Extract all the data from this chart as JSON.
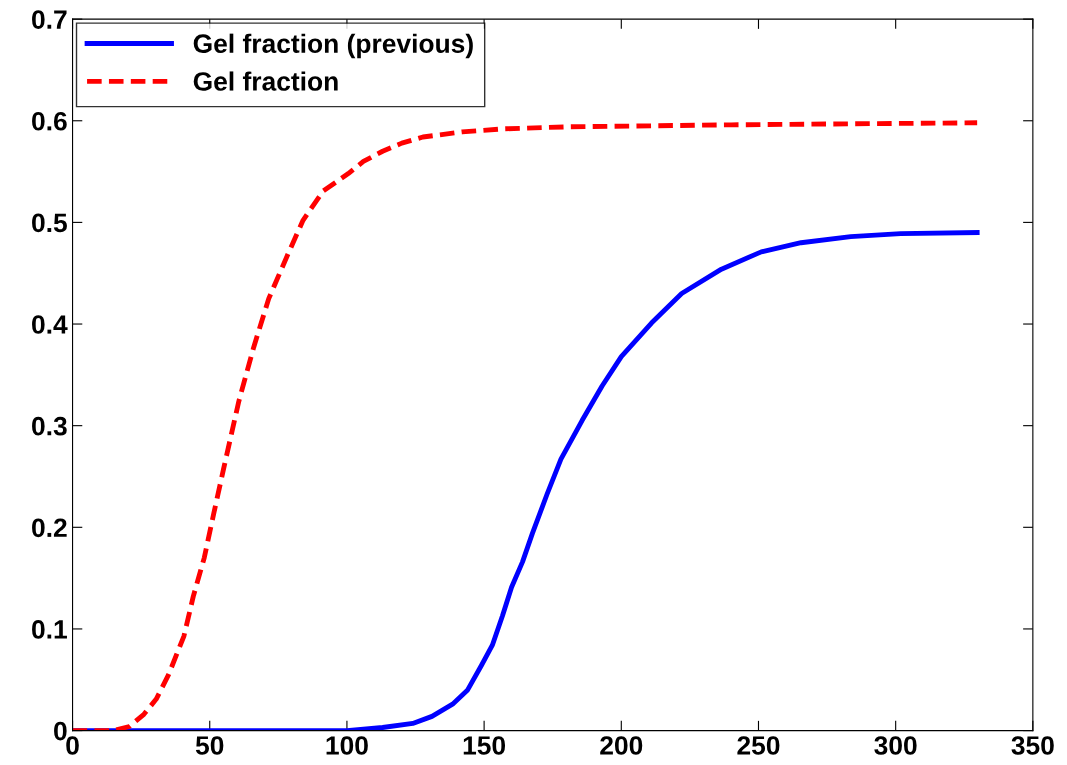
{
  "chart_data": {
    "type": "line",
    "xlim": [
      0,
      350
    ],
    "ylim": [
      0,
      0.7
    ],
    "xticks": [
      0,
      50,
      100,
      150,
      200,
      250,
      300,
      350
    ],
    "yticks": [
      0,
      0.1,
      0.2,
      0.3,
      0.4,
      0.5,
      0.6,
      0.7
    ],
    "grid": false,
    "legend": "top left",
    "marker": "none",
    "series": [
      {
        "name": "Gel fraction (previous)",
        "color": "#0000ff",
        "line_style": "solid",
        "x": [
          0,
          50,
          100,
          113,
          124,
          131,
          138.5,
          144,
          149,
          153,
          156.7,
          160,
          164,
          167.6,
          173,
          178,
          185.7,
          193,
          200,
          211,
          222,
          236.5,
          251,
          265.5,
          283.6,
          301.8,
          329.7
        ],
        "values": [
          0,
          0,
          0,
          0.003,
          0.007,
          0.014,
          0.026,
          0.04,
          0.064,
          0.084,
          0.113,
          0.141,
          0.166,
          0.194,
          0.233,
          0.267,
          0.305,
          0.339,
          0.368,
          0.401,
          0.43,
          0.454,
          0.471,
          0.48,
          0.486,
          0.489,
          0.49
        ]
      },
      {
        "name": "Gel fraction",
        "color": "#ff0000",
        "line_style": "dashed",
        "x": [
          0,
          15,
          20.7,
          26,
          30.5,
          35,
          40.6,
          44,
          48,
          51.5,
          55,
          60.6,
          66,
          71.5,
          78.7,
          84,
          91.4,
          100.5,
          106,
          113,
          120,
          127.7,
          142,
          156.7,
          180,
          240,
          329.7
        ],
        "values": [
          0,
          0,
          0.004,
          0.016,
          0.031,
          0.055,
          0.093,
          0.132,
          0.17,
          0.214,
          0.257,
          0.324,
          0.377,
          0.425,
          0.47,
          0.502,
          0.531,
          0.548,
          0.56,
          0.57,
          0.578,
          0.584,
          0.589,
          0.592,
          0.594,
          0.596,
          0.598
        ]
      }
    ]
  }
}
